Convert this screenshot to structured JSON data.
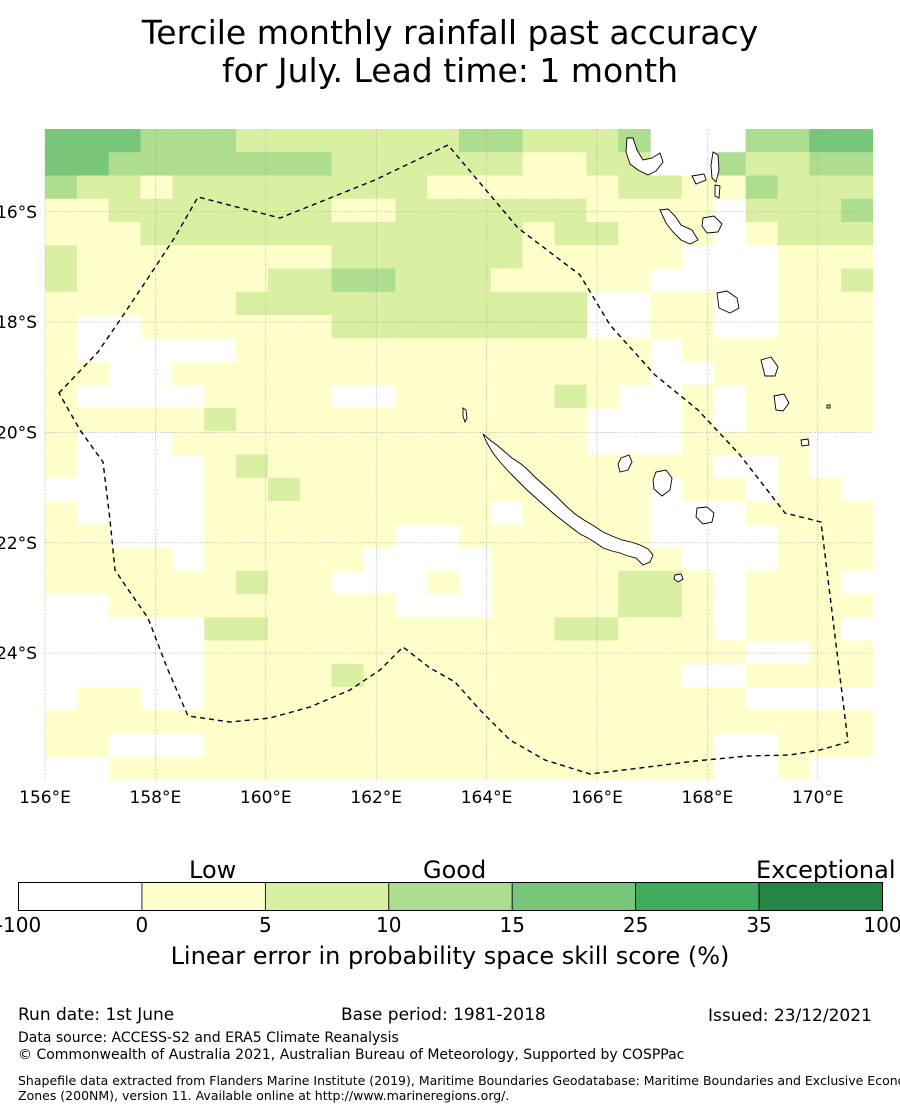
{
  "title": {
    "line1": "Tercile monthly rainfall past accuracy",
    "line2": "for July. Lead time: 1 month"
  },
  "map": {
    "lon_labels": [
      "156°E",
      "158°E",
      "160°E",
      "162°E",
      "164°E",
      "166°E",
      "168°E",
      "170°E"
    ],
    "lat_labels": [
      "16°S",
      "18°S",
      "20°S",
      "22°S",
      "24°S"
    ],
    "lon_range": [
      156,
      171
    ],
    "lat_range": [
      -26.3,
      -14.5
    ],
    "grid_cell_deg": 0.833,
    "grid_lines": true,
    "boundary_style": "dashed",
    "skill_grid_codes": [
      "44433322222223322230003344",
      "44333333322222211220032233",
      "32212222222211111122113222",
      "11222222211222222111102223",
      "11122222222222212211101222",
      "21111111122222211111000111",
      "21111112233222111110000112",
      "11111122222222222001100111",
      "10011111122222222001100111",
      "10000011111111111110111111",
      "11001111111111111110011111",
      "10000111100111112100101111",
      "11111211111111111000101111",
      "10001111111111111000111100",
      "10000121111111111111100100",
      "00000112111111111110110110",
      "10000111111111011110001111",
      "11000111111001111110000111",
      "11110111110000111111000111",
      "11111121100010111122101110",
      "00111111111000111122101111",
      "00000221111111112211101110",
      "00000111111111111111110011",
      "00000111121111111111001111",
      "01100111111111111111110000",
      "11111111111111111111111111",
      "11000111111111111111100111",
      "00111111111111111111100100"
    ],
    "colors": [
      "#ffffff",
      "#ffffcc",
      "#d9f0a3",
      "#addd8e",
      "#78c679",
      "#41ab5d",
      "#238443"
    ]
  },
  "colorbar": {
    "categories": [
      "Low",
      "Good",
      "Exceptional"
    ],
    "ticks": [
      "-100",
      "0",
      "5",
      "10",
      "15",
      "25",
      "35",
      "100"
    ],
    "colors": [
      "#ffffff",
      "#ffffcc",
      "#d9f0a3",
      "#addd8e",
      "#78c679",
      "#41ab5d",
      "#238443"
    ],
    "label": "Linear error in probability space skill score (%)"
  },
  "footer": {
    "run_date": "Run date: 1st June",
    "base_period": "Base period: 1981-2018",
    "issued": "Issued: 23/12/2021",
    "data_source": "Data source: ACCESS-S2 and ERA5 Climate Reanalysis",
    "copyright": "© Commonwealth of Australia 2021, Australian Bureau of Meteorology, Supported by COSPPac",
    "shapefile_line1": "Shapefile data extracted from Flanders Marine Institute (2019), Maritime Boundaries Geodatabase: Maritime Boundaries and Exclusive Economic",
    "shapefile_line2": "Zones (200NM), version 11. Available online at http://www.marineregions.org/."
  }
}
